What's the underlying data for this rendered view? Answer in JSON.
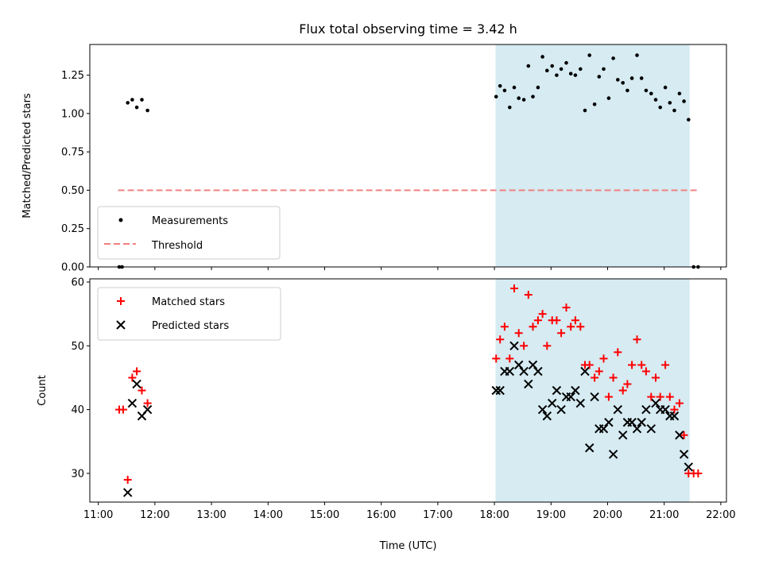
{
  "chart_data": {
    "title": "Flux total observing time = 3.42 h",
    "xlabel": "Time (UTC)",
    "x_ticks": [
      "11:00",
      "12:00",
      "13:00",
      "14:00",
      "15:00",
      "16:00",
      "17:00",
      "18:00",
      "19:00",
      "20:00",
      "21:00",
      "22:00"
    ],
    "x_range_hours": [
      10.85,
      22.1
    ],
    "highlight_span_hours": [
      18.02,
      21.45
    ],
    "panels": [
      {
        "type": "scatter",
        "ylabel": "Matched/Predicted stars",
        "ylim": [
          0,
          1.45
        ],
        "yticks": [
          "0.00",
          "0.25",
          "0.50",
          "0.75",
          "1.00",
          "1.25"
        ],
        "legend": {
          "position": "lower-left",
          "entries": [
            "Measurements",
            "Threshold"
          ]
        },
        "threshold": {
          "name": "Threshold",
          "y": 0.5,
          "x_from": 11.35,
          "x_to": 21.62,
          "color": "#f08080"
        },
        "series": [
          {
            "name": "Measurements",
            "color": "#000000",
            "marker": "dot",
            "points": [
              [
                11.37,
                0.0
              ],
              [
                11.42,
                0.0
              ],
              [
                11.52,
                1.07
              ],
              [
                11.6,
                1.09
              ],
              [
                11.68,
                1.04
              ],
              [
                11.77,
                1.09
              ],
              [
                11.87,
                1.02
              ],
              [
                18.03,
                1.11
              ],
              [
                18.1,
                1.18
              ],
              [
                18.18,
                1.15
              ],
              [
                18.27,
                1.04
              ],
              [
                18.35,
                1.17
              ],
              [
                18.43,
                1.1
              ],
              [
                18.52,
                1.09
              ],
              [
                18.6,
                1.31
              ],
              [
                18.68,
                1.11
              ],
              [
                18.77,
                1.17
              ],
              [
                18.85,
                1.37
              ],
              [
                18.93,
                1.28
              ],
              [
                19.02,
                1.31
              ],
              [
                19.1,
                1.25
              ],
              [
                19.18,
                1.29
              ],
              [
                19.27,
                1.33
              ],
              [
                19.35,
                1.26
              ],
              [
                19.43,
                1.25
              ],
              [
                19.52,
                1.29
              ],
              [
                19.6,
                1.02
              ],
              [
                19.68,
                1.38
              ],
              [
                19.77,
                1.06
              ],
              [
                19.85,
                1.24
              ],
              [
                19.93,
                1.29
              ],
              [
                20.02,
                1.1
              ],
              [
                20.1,
                1.36
              ],
              [
                20.18,
                1.22
              ],
              [
                20.27,
                1.2
              ],
              [
                20.35,
                1.15
              ],
              [
                20.43,
                1.23
              ],
              [
                20.52,
                1.38
              ],
              [
                20.6,
                1.23
              ],
              [
                20.68,
                1.15
              ],
              [
                20.77,
                1.13
              ],
              [
                20.85,
                1.09
              ],
              [
                20.93,
                1.04
              ],
              [
                21.02,
                1.17
              ],
              [
                21.1,
                1.07
              ],
              [
                21.18,
                1.02
              ],
              [
                21.27,
                1.13
              ],
              [
                21.35,
                1.08
              ],
              [
                21.43,
                0.96
              ],
              [
                21.52,
                0.0
              ],
              [
                21.6,
                0.0
              ]
            ]
          }
        ]
      },
      {
        "type": "scatter",
        "ylabel": "Count",
        "ylim": [
          25.5,
          60.5
        ],
        "yticks": [
          "30",
          "40",
          "50",
          "60"
        ],
        "legend": {
          "position": "upper-left",
          "entries": [
            "Matched stars",
            "Predicted stars"
          ]
        },
        "series": [
          {
            "name": "Matched stars",
            "color": "#ff0000",
            "marker": "plus",
            "points": [
              [
                11.37,
                40
              ],
              [
                11.44,
                40
              ],
              [
                11.52,
                29
              ],
              [
                11.6,
                45
              ],
              [
                11.68,
                46
              ],
              [
                11.77,
                43
              ],
              [
                11.87,
                41
              ],
              [
                18.03,
                48
              ],
              [
                18.1,
                51
              ],
              [
                18.18,
                53
              ],
              [
                18.27,
                48
              ],
              [
                18.35,
                59
              ],
              [
                18.43,
                52
              ],
              [
                18.52,
                50
              ],
              [
                18.6,
                58
              ],
              [
                18.68,
                53
              ],
              [
                18.77,
                54
              ],
              [
                18.85,
                55
              ],
              [
                18.93,
                50
              ],
              [
                19.02,
                54
              ],
              [
                19.1,
                54
              ],
              [
                19.18,
                52
              ],
              [
                19.27,
                56
              ],
              [
                19.35,
                53
              ],
              [
                19.43,
                54
              ],
              [
                19.52,
                53
              ],
              [
                19.6,
                47
              ],
              [
                19.68,
                47
              ],
              [
                19.77,
                45
              ],
              [
                19.85,
                46
              ],
              [
                19.93,
                48
              ],
              [
                20.02,
                42
              ],
              [
                20.1,
                45
              ],
              [
                20.18,
                49
              ],
              [
                20.27,
                43
              ],
              [
                20.35,
                44
              ],
              [
                20.43,
                47
              ],
              [
                20.52,
                51
              ],
              [
                20.6,
                47
              ],
              [
                20.68,
                46
              ],
              [
                20.77,
                42
              ],
              [
                20.85,
                45
              ],
              [
                20.93,
                42
              ],
              [
                21.02,
                47
              ],
              [
                21.1,
                42
              ],
              [
                21.18,
                40
              ],
              [
                21.27,
                41
              ],
              [
                21.35,
                36
              ],
              [
                21.43,
                30
              ],
              [
                21.52,
                30
              ],
              [
                21.6,
                30
              ]
            ]
          },
          {
            "name": "Predicted stars",
            "color": "#000000",
            "marker": "x",
            "points": [
              [
                11.52,
                27
              ],
              [
                11.6,
                41
              ],
              [
                11.68,
                44
              ],
              [
                11.77,
                39
              ],
              [
                11.87,
                40
              ],
              [
                18.03,
                43
              ],
              [
                18.1,
                43
              ],
              [
                18.18,
                46
              ],
              [
                18.27,
                46
              ],
              [
                18.35,
                50
              ],
              [
                18.43,
                47
              ],
              [
                18.52,
                46
              ],
              [
                18.6,
                44
              ],
              [
                18.68,
                47
              ],
              [
                18.77,
                46
              ],
              [
                18.85,
                40
              ],
              [
                18.93,
                39
              ],
              [
                19.02,
                41
              ],
              [
                19.1,
                43
              ],
              [
                19.18,
                40
              ],
              [
                19.27,
                42
              ],
              [
                19.35,
                42
              ],
              [
                19.43,
                43
              ],
              [
                19.52,
                41
              ],
              [
                19.6,
                46
              ],
              [
                19.68,
                34
              ],
              [
                19.77,
                42
              ],
              [
                19.85,
                37
              ],
              [
                19.93,
                37
              ],
              [
                20.02,
                38
              ],
              [
                20.1,
                33
              ],
              [
                20.18,
                40
              ],
              [
                20.27,
                36
              ],
              [
                20.35,
                38
              ],
              [
                20.43,
                38
              ],
              [
                20.52,
                37
              ],
              [
                20.6,
                38
              ],
              [
                20.68,
                40
              ],
              [
                20.77,
                37
              ],
              [
                20.85,
                41
              ],
              [
                20.93,
                40
              ],
              [
                21.02,
                40
              ],
              [
                21.1,
                39
              ],
              [
                21.18,
                39
              ],
              [
                21.27,
                36
              ],
              [
                21.35,
                33
              ],
              [
                21.43,
                31
              ]
            ]
          }
        ]
      }
    ]
  }
}
